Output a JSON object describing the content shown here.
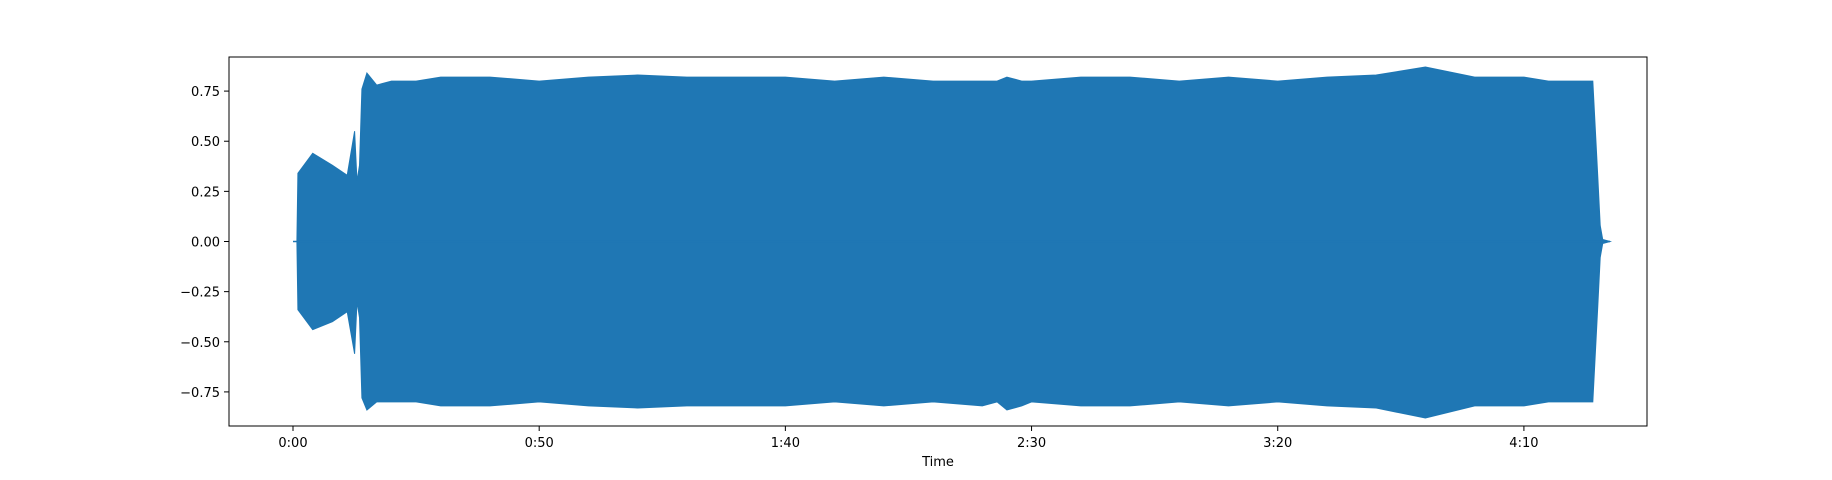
{
  "chart_data": {
    "type": "area",
    "title": "",
    "xlabel": "Time",
    "ylabel": "",
    "xlim": [
      -13,
      275
    ],
    "ylim": [
      -0.92,
      0.92
    ],
    "grid": false,
    "color": "#1f77b4",
    "x_ticks": [
      {
        "value": 0,
        "label": "0:00"
      },
      {
        "value": 50,
        "label": "0:50"
      },
      {
        "value": 100,
        "label": "1:40"
      },
      {
        "value": 150,
        "label": "2:30"
      },
      {
        "value": 200,
        "label": "3:20"
      },
      {
        "value": 250,
        "label": "4:10"
      }
    ],
    "y_ticks": [
      {
        "value": 0.75,
        "label": "0.75"
      },
      {
        "value": 0.5,
        "label": "0.50"
      },
      {
        "value": 0.25,
        "label": "0.25"
      },
      {
        "value": 0.0,
        "label": "0.00"
      },
      {
        "value": -0.25,
        "label": "−0.25"
      },
      {
        "value": -0.5,
        "label": "−0.50"
      },
      {
        "value": -0.75,
        "label": "−0.75"
      }
    ],
    "series": [
      {
        "x": [
          0,
          0.8,
          1,
          4,
          8,
          11,
          12.5,
          13,
          13.5,
          14,
          15,
          17,
          20,
          25,
          30,
          40,
          50,
          60,
          70,
          80,
          90,
          100,
          110,
          120,
          130,
          140,
          143,
          145,
          148,
          150,
          160,
          170,
          180,
          190,
          200,
          210,
          220,
          230,
          240,
          250,
          255,
          260,
          264,
          265,
          265.5,
          266,
          267.5
        ],
        "y_upper": [
          0.0,
          0.0,
          0.34,
          0.44,
          0.38,
          0.33,
          0.55,
          0.3,
          0.38,
          0.76,
          0.84,
          0.78,
          0.8,
          0.8,
          0.82,
          0.82,
          0.8,
          0.82,
          0.83,
          0.82,
          0.82,
          0.82,
          0.8,
          0.82,
          0.8,
          0.8,
          0.8,
          0.82,
          0.8,
          0.8,
          0.82,
          0.82,
          0.8,
          0.82,
          0.8,
          0.82,
          0.83,
          0.87,
          0.82,
          0.82,
          0.8,
          0.8,
          0.8,
          0.32,
          0.08,
          0.01,
          0.0
        ],
        "y_lower": [
          0.0,
          0.0,
          -0.34,
          -0.44,
          -0.4,
          -0.35,
          -0.56,
          -0.3,
          -0.38,
          -0.78,
          -0.84,
          -0.8,
          -0.8,
          -0.8,
          -0.82,
          -0.82,
          -0.8,
          -0.82,
          -0.83,
          -0.82,
          -0.82,
          -0.82,
          -0.8,
          -0.82,
          -0.8,
          -0.82,
          -0.8,
          -0.84,
          -0.82,
          -0.8,
          -0.82,
          -0.82,
          -0.8,
          -0.82,
          -0.8,
          -0.82,
          -0.83,
          -0.88,
          -0.82,
          -0.82,
          -0.8,
          -0.8,
          -0.8,
          -0.32,
          -0.08,
          -0.01,
          0.0
        ]
      }
    ]
  }
}
